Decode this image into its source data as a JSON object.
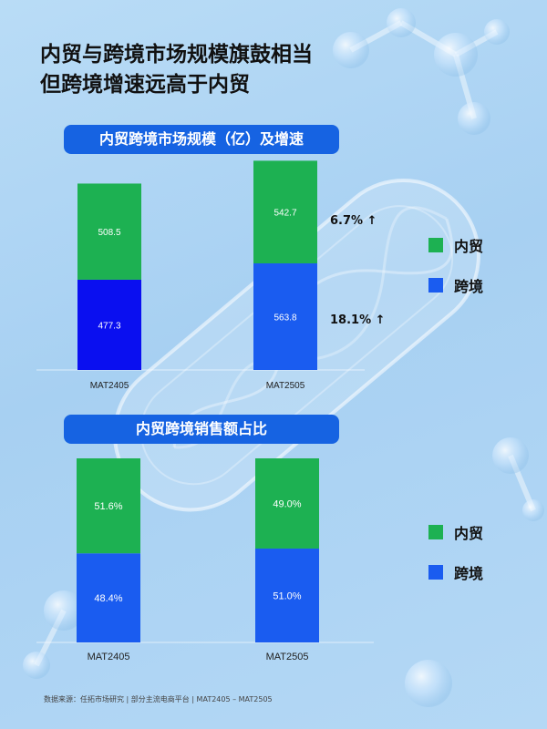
{
  "title": "内贸与跨境市场规模旗鼓相当\n但跨境增速远高于内贸",
  "colors": {
    "domestic": "#1db152",
    "crossborder_top": "#0a0ff0",
    "crossborder_bottom": "#1a5cf0",
    "pill": "#1663e2"
  },
  "legend_top": [
    {
      "label": "内贸",
      "color": "#1db152"
    },
    {
      "label": "跨境",
      "color": "#1a5cf0"
    }
  ],
  "legend_bottom": [
    {
      "label": "内贸",
      "color": "#1db152"
    },
    {
      "label": "跨境",
      "color": "#1a5cf0"
    }
  ],
  "growth": {
    "domestic": "6.7% ↑",
    "crossborder": "18.1% ↑"
  },
  "source": "数据来源：任拓市场研究 | 部分主流电商平台 | MAT2405 – MAT2505",
  "chart_data": [
    {
      "type": "bar",
      "stacked": true,
      "title": "内贸跨境市场规模（亿）及增速",
      "categories": [
        "MAT2405",
        "MAT2505"
      ],
      "series": [
        {
          "name": "跨境",
          "values": [
            477.3,
            563.8
          ],
          "labels": [
            "477.3",
            "563.8"
          ]
        },
        {
          "name": "内贸",
          "values": [
            508.5,
            542.7
          ],
          "labels": [
            "508.5",
            "542.7"
          ]
        }
      ],
      "legend": "right"
    },
    {
      "type": "bar",
      "stacked": true,
      "percent": true,
      "title": "内贸跨境销售额占比",
      "categories": [
        "MAT2405",
        "MAT2505"
      ],
      "series": [
        {
          "name": "跨境",
          "values": [
            48.4,
            51.0
          ],
          "labels": [
            "48.4%",
            "51.0%"
          ]
        },
        {
          "name": "内贸",
          "values": [
            51.6,
            49.0
          ],
          "labels": [
            "51.6%",
            "49.0%"
          ]
        }
      ],
      "ylim": [
        0,
        100
      ],
      "legend": "right"
    }
  ]
}
